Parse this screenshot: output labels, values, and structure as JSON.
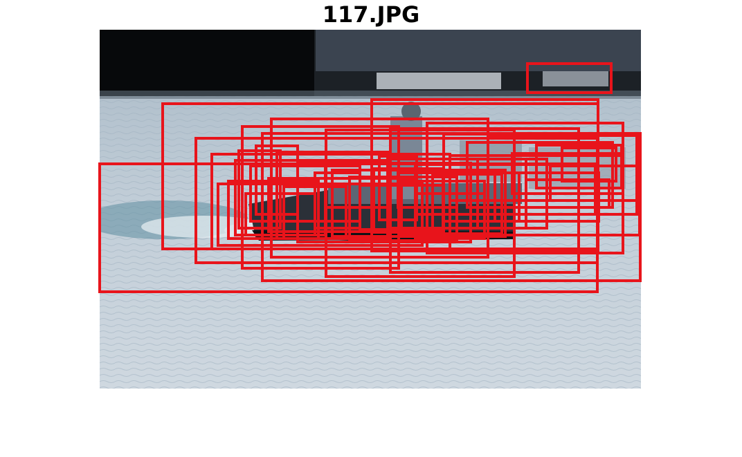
{
  "title": "117.JPG",
  "box_color": "#e8141b",
  "box_count": 48
}
